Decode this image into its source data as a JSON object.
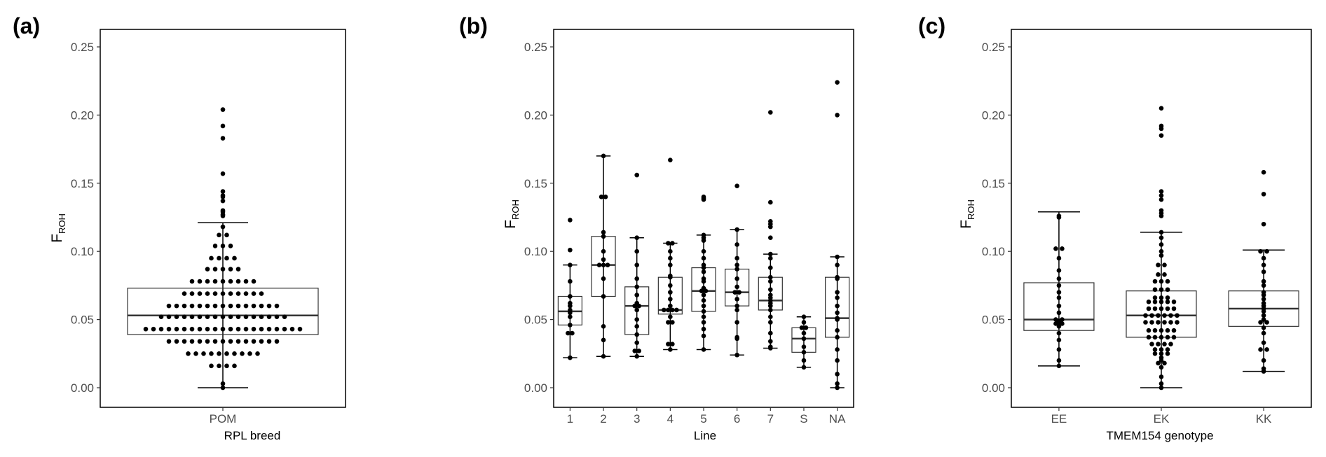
{
  "chart_data": [
    {
      "type": "box",
      "panel_label": "(a)",
      "ylabel": "F",
      "ylabel_subscript": "ROH",
      "xlabel": "RPL breed",
      "ylim": [
        0,
        0.25
      ],
      "yticks": [
        "0.00",
        "0.05",
        "0.10",
        "0.15",
        "0.20",
        "0.25"
      ],
      "categories": [
        "POM"
      ],
      "boxes": [
        {
          "category": "POM",
          "q1": 0.039,
          "median": 0.053,
          "q3": 0.073,
          "whisker_low": 0.0,
          "whisker_high": 0.121,
          "points": [
            0.0,
            0.003,
            0.016,
            0.016,
            0.016,
            0.016,
            0.025,
            0.025,
            0.025,
            0.025,
            0.025,
            0.025,
            0.025,
            0.025,
            0.025,
            0.025,
            0.034,
            0.034,
            0.034,
            0.034,
            0.034,
            0.034,
            0.034,
            0.034,
            0.034,
            0.034,
            0.034,
            0.034,
            0.034,
            0.034,
            0.034,
            0.043,
            0.043,
            0.043,
            0.043,
            0.043,
            0.043,
            0.043,
            0.043,
            0.043,
            0.043,
            0.043,
            0.043,
            0.043,
            0.043,
            0.043,
            0.043,
            0.043,
            0.043,
            0.043,
            0.043,
            0.043,
            0.052,
            0.052,
            0.052,
            0.052,
            0.052,
            0.052,
            0.052,
            0.052,
            0.052,
            0.052,
            0.052,
            0.052,
            0.052,
            0.052,
            0.052,
            0.052,
            0.052,
            0.06,
            0.06,
            0.06,
            0.06,
            0.06,
            0.06,
            0.06,
            0.06,
            0.06,
            0.06,
            0.06,
            0.06,
            0.06,
            0.06,
            0.06,
            0.069,
            0.069,
            0.069,
            0.069,
            0.069,
            0.069,
            0.069,
            0.069,
            0.069,
            0.069,
            0.069,
            0.078,
            0.078,
            0.078,
            0.078,
            0.078,
            0.078,
            0.078,
            0.078,
            0.078,
            0.087,
            0.087,
            0.087,
            0.087,
            0.087,
            0.095,
            0.095,
            0.095,
            0.095,
            0.104,
            0.104,
            0.104,
            0.112,
            0.112,
            0.118,
            0.126,
            0.127,
            0.129,
            0.13,
            0.137,
            0.14,
            0.141,
            0.144,
            0.157,
            0.183,
            0.192,
            0.204
          ]
        }
      ]
    },
    {
      "type": "box",
      "panel_label": "(b)",
      "ylabel": "F",
      "ylabel_subscript": "ROH",
      "xlabel": "Line",
      "ylim": [
        0,
        0.25
      ],
      "yticks": [
        "0.00",
        "0.05",
        "0.10",
        "0.15",
        "0.20",
        "0.25"
      ],
      "categories": [
        "1",
        "2",
        "3",
        "4",
        "5",
        "6",
        "7",
        "S",
        "NA"
      ],
      "boxes": [
        {
          "category": "1",
          "q1": 0.046,
          "median": 0.056,
          "q3": 0.067,
          "whisker_low": 0.022,
          "whisker_high": 0.09,
          "points": [
            0.022,
            0.04,
            0.04,
            0.046,
            0.052,
            0.055,
            0.057,
            0.06,
            0.062,
            0.067,
            0.078,
            0.09,
            0.101,
            0.123
          ]
        },
        {
          "category": "2",
          "q1": 0.067,
          "median": 0.09,
          "q3": 0.111,
          "whisker_low": 0.023,
          "whisker_high": 0.17,
          "points": [
            0.023,
            0.035,
            0.045,
            0.067,
            0.08,
            0.09,
            0.09,
            0.09,
            0.094,
            0.1,
            0.111,
            0.114,
            0.14,
            0.14,
            0.17
          ]
        },
        {
          "category": "3",
          "q1": 0.039,
          "median": 0.06,
          "q3": 0.074,
          "whisker_low": 0.023,
          "whisker_high": 0.11,
          "points": [
            0.023,
            0.027,
            0.027,
            0.033,
            0.039,
            0.045,
            0.05,
            0.057,
            0.06,
            0.06,
            0.062,
            0.068,
            0.074,
            0.08,
            0.09,
            0.1,
            0.11,
            0.156
          ]
        },
        {
          "category": "4",
          "q1": 0.054,
          "median": 0.057,
          "q3": 0.081,
          "whisker_low": 0.028,
          "whisker_high": 0.106,
          "points": [
            0.028,
            0.032,
            0.032,
            0.048,
            0.048,
            0.052,
            0.057,
            0.057,
            0.057,
            0.057,
            0.06,
            0.065,
            0.07,
            0.075,
            0.081,
            0.082,
            0.09,
            0.095,
            0.1,
            0.106,
            0.106,
            0.167
          ]
        },
        {
          "category": "5",
          "q1": 0.056,
          "median": 0.071,
          "q3": 0.088,
          "whisker_low": 0.028,
          "whisker_high": 0.112,
          "points": [
            0.028,
            0.038,
            0.043,
            0.048,
            0.052,
            0.056,
            0.06,
            0.064,
            0.068,
            0.071,
            0.071,
            0.073,
            0.078,
            0.08,
            0.085,
            0.088,
            0.09,
            0.095,
            0.1,
            0.108,
            0.11,
            0.112,
            0.138,
            0.139,
            0.14
          ]
        },
        {
          "category": "6",
          "q1": 0.06,
          "median": 0.07,
          "q3": 0.087,
          "whisker_low": 0.024,
          "whisker_high": 0.116,
          "points": [
            0.024,
            0.036,
            0.037,
            0.048,
            0.057,
            0.06,
            0.065,
            0.07,
            0.07,
            0.074,
            0.08,
            0.087,
            0.09,
            0.095,
            0.105,
            0.116,
            0.148
          ]
        },
        {
          "category": "7",
          "q1": 0.057,
          "median": 0.064,
          "q3": 0.081,
          "whisker_low": 0.029,
          "whisker_high": 0.098,
          "points": [
            0.029,
            0.03,
            0.034,
            0.04,
            0.048,
            0.052,
            0.057,
            0.06,
            0.062,
            0.064,
            0.066,
            0.068,
            0.072,
            0.078,
            0.081,
            0.088,
            0.095,
            0.098,
            0.11,
            0.118,
            0.12,
            0.122,
            0.136,
            0.202
          ]
        },
        {
          "category": "S",
          "q1": 0.026,
          "median": 0.036,
          "q3": 0.044,
          "whisker_low": 0.015,
          "whisker_high": 0.052,
          "points": [
            0.015,
            0.02,
            0.026,
            0.03,
            0.036,
            0.04,
            0.044,
            0.044,
            0.048,
            0.052
          ]
        },
        {
          "category": "NA",
          "q1": 0.037,
          "median": 0.051,
          "q3": 0.081,
          "whisker_low": 0.0,
          "whisker_high": 0.096,
          "points": [
            0.0,
            0.003,
            0.01,
            0.02,
            0.028,
            0.037,
            0.042,
            0.05,
            0.051,
            0.055,
            0.06,
            0.066,
            0.07,
            0.08,
            0.081,
            0.09,
            0.096,
            0.2,
            0.224
          ]
        }
      ]
    },
    {
      "type": "box",
      "panel_label": "(c)",
      "ylabel": "F",
      "ylabel_subscript": "ROH",
      "xlabel": "TMEM154 genotype",
      "ylim": [
        0,
        0.25
      ],
      "yticks": [
        "0.00",
        "0.05",
        "0.10",
        "0.15",
        "0.20",
        "0.25"
      ],
      "categories": [
        "EE",
        "EK",
        "KK"
      ],
      "boxes": [
        {
          "category": "EE",
          "q1": 0.042,
          "median": 0.05,
          "q3": 0.077,
          "whisker_low": 0.016,
          "whisker_high": 0.129,
          "points": [
            0.016,
            0.02,
            0.028,
            0.035,
            0.04,
            0.045,
            0.047,
            0.047,
            0.048,
            0.049,
            0.05,
            0.05,
            0.055,
            0.06,
            0.066,
            0.07,
            0.075,
            0.08,
            0.086,
            0.095,
            0.102,
            0.102,
            0.125,
            0.126
          ]
        },
        {
          "category": "EK",
          "q1": 0.037,
          "median": 0.053,
          "q3": 0.071,
          "whisker_low": 0.0,
          "whisker_high": 0.114,
          "points": [
            0.0,
            0.003,
            0.008,
            0.015,
            0.018,
            0.018,
            0.02,
            0.022,
            0.025,
            0.025,
            0.025,
            0.028,
            0.028,
            0.028,
            0.032,
            0.032,
            0.032,
            0.032,
            0.037,
            0.037,
            0.037,
            0.037,
            0.037,
            0.042,
            0.042,
            0.042,
            0.042,
            0.042,
            0.048,
            0.048,
            0.048,
            0.048,
            0.048,
            0.048,
            0.053,
            0.053,
            0.053,
            0.053,
            0.053,
            0.053,
            0.058,
            0.058,
            0.058,
            0.058,
            0.058,
            0.063,
            0.063,
            0.063,
            0.063,
            0.063,
            0.066,
            0.066,
            0.066,
            0.072,
            0.072,
            0.072,
            0.078,
            0.078,
            0.078,
            0.083,
            0.083,
            0.09,
            0.09,
            0.097,
            0.1,
            0.105,
            0.11,
            0.114,
            0.126,
            0.128,
            0.13,
            0.138,
            0.141,
            0.144,
            0.185,
            0.19,
            0.192,
            0.205
          ]
        },
        {
          "category": "KK",
          "q1": 0.045,
          "median": 0.058,
          "q3": 0.071,
          "whisker_low": 0.012,
          "whisker_high": 0.101,
          "points": [
            0.012,
            0.014,
            0.02,
            0.028,
            0.028,
            0.033,
            0.04,
            0.044,
            0.048,
            0.048,
            0.05,
            0.053,
            0.056,
            0.058,
            0.06,
            0.062,
            0.065,
            0.068,
            0.07,
            0.075,
            0.078,
            0.085,
            0.09,
            0.095,
            0.1,
            0.1,
            0.12,
            0.142,
            0.158
          ]
        }
      ]
    }
  ]
}
